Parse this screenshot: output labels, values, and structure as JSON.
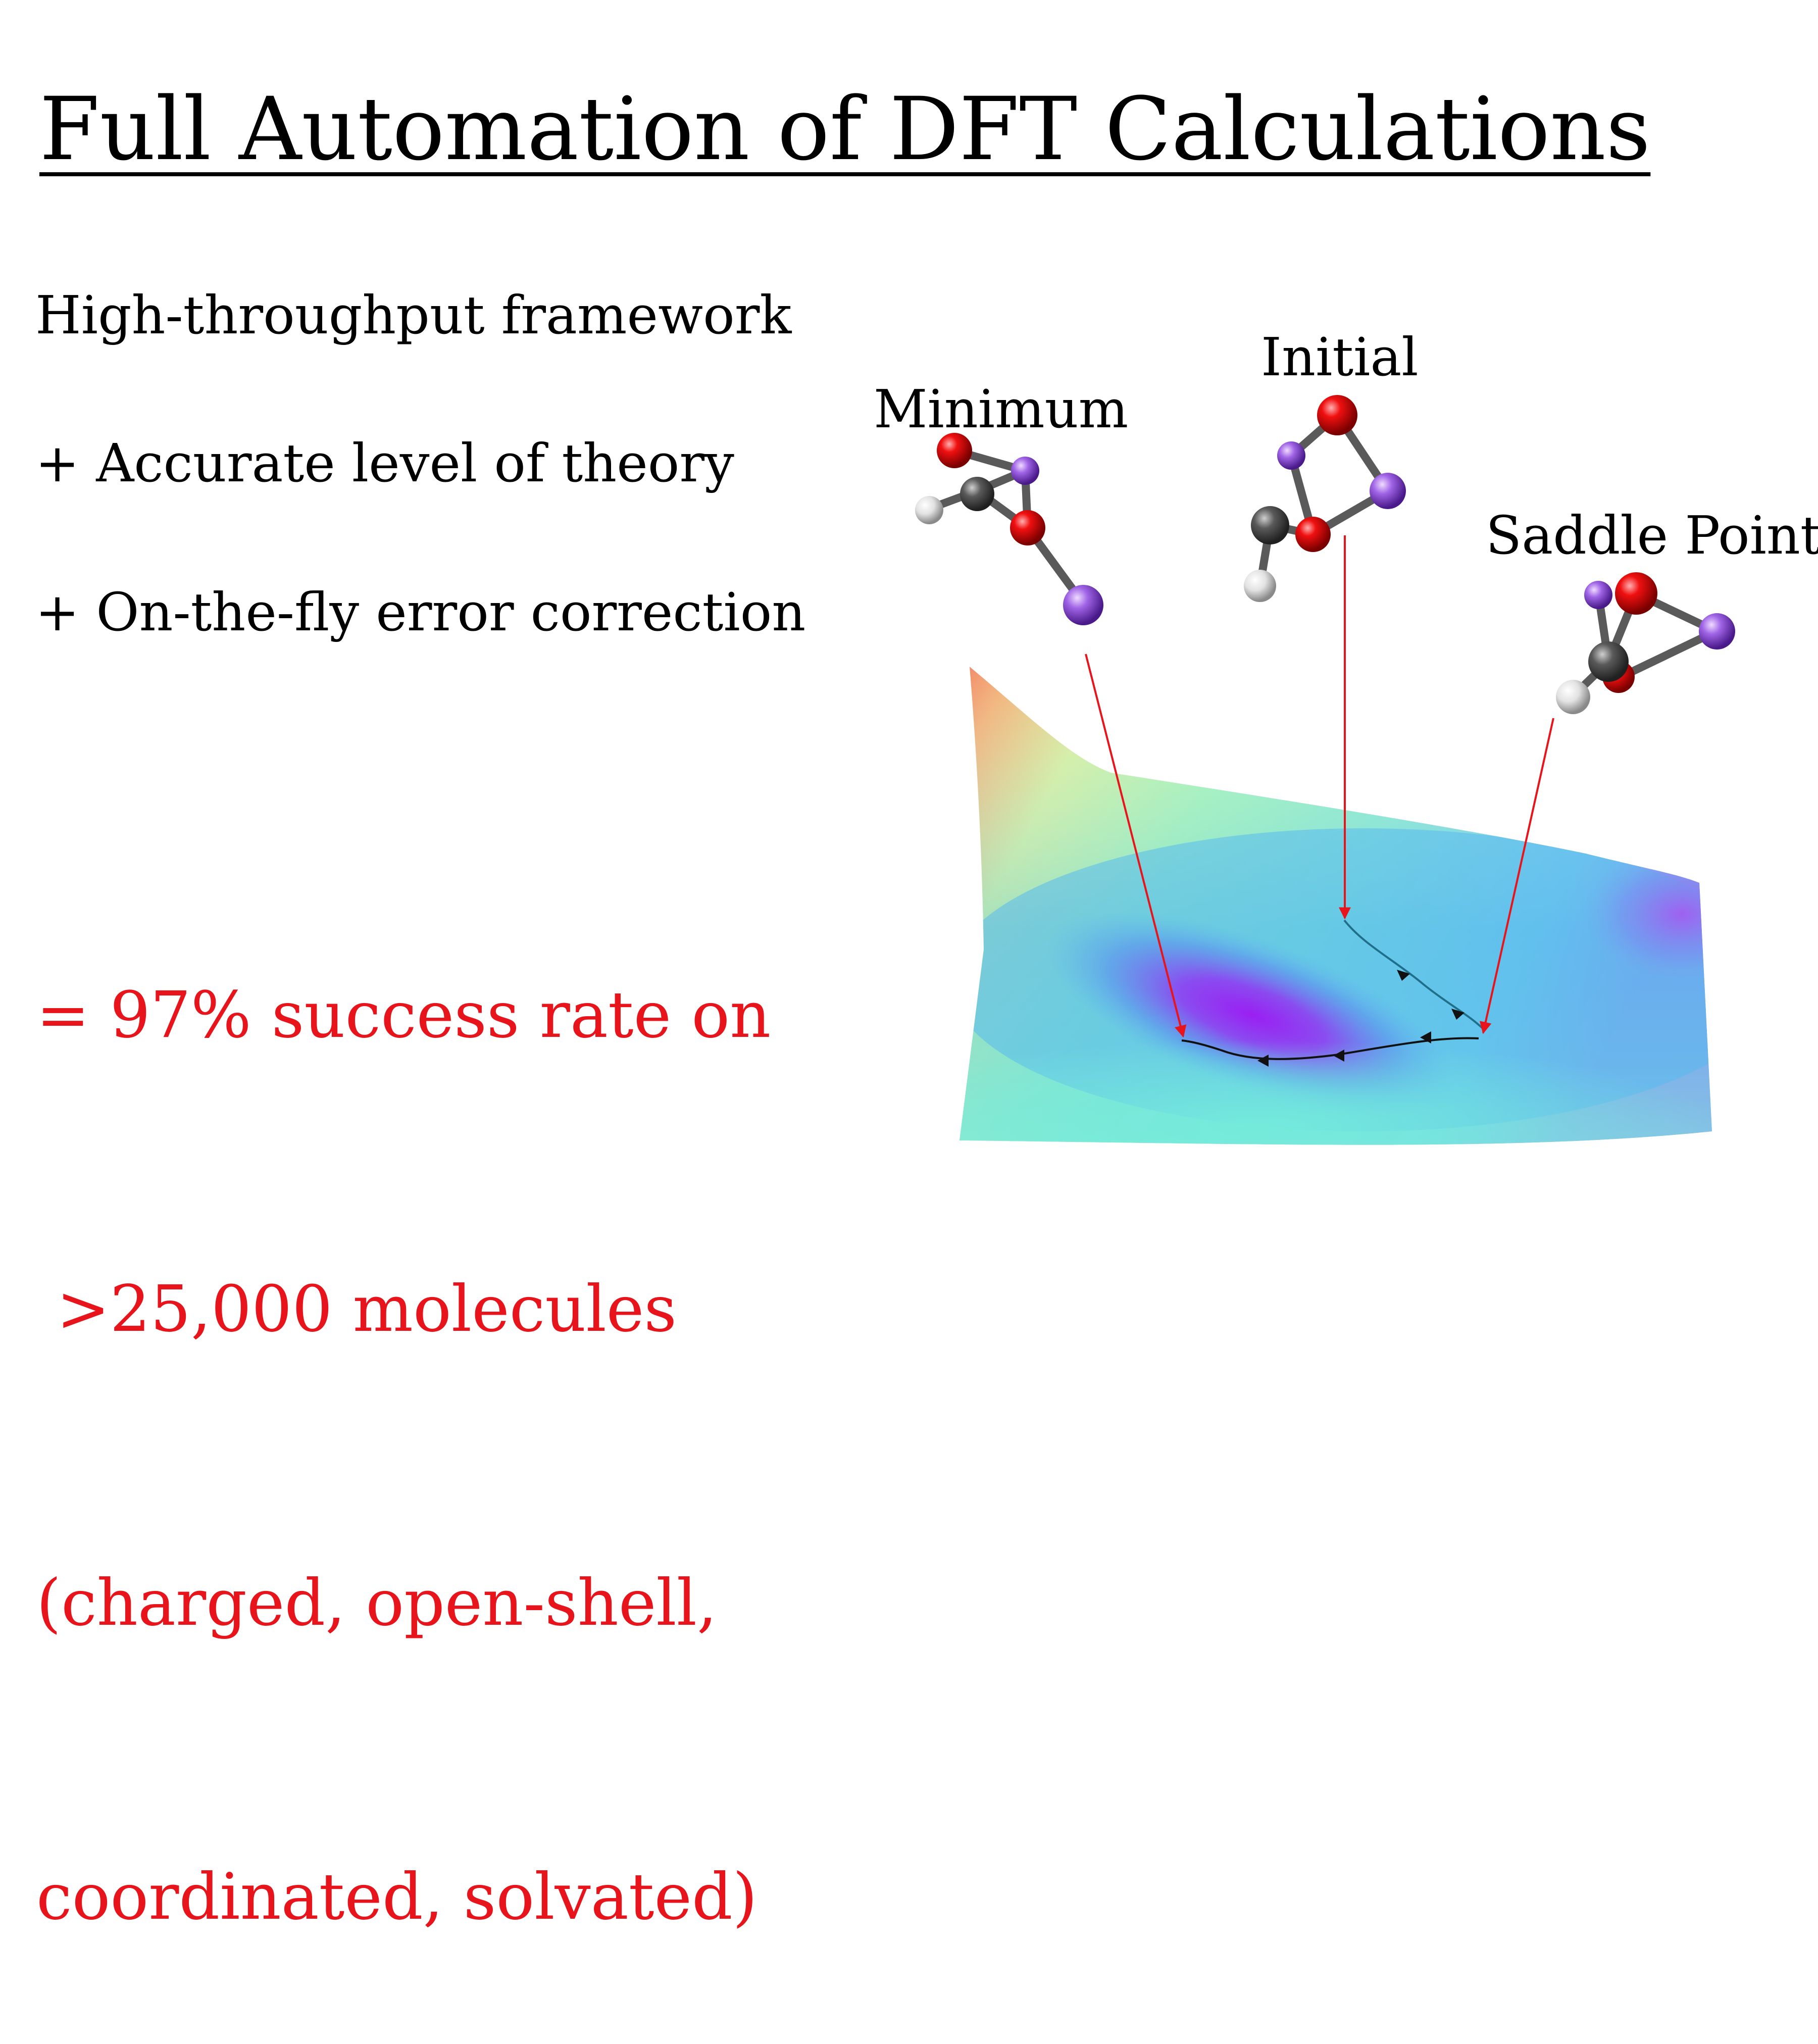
{
  "title": "Full Automation of DFT Calculations",
  "bullets": [
    "High-throughput framework",
    "+ Accurate level of theory",
    "+ On-the-fly error correction"
  ],
  "result_lines": [
    "= 97% success rate on",
    " >25,000 molecules",
    "(charged, open-shell,",
    "coordinated, solvated)"
  ],
  "diagram_labels": {
    "minimum": "Minimum",
    "initial": "Initial",
    "saddle": "Saddle Point"
  },
  "colors": {
    "highlight": "#e8141c",
    "oxygen": "#e0000c",
    "carbon": "#555555",
    "hydrogen": "#dddddd",
    "lithium": "#a070e0",
    "path": "#111111"
  }
}
